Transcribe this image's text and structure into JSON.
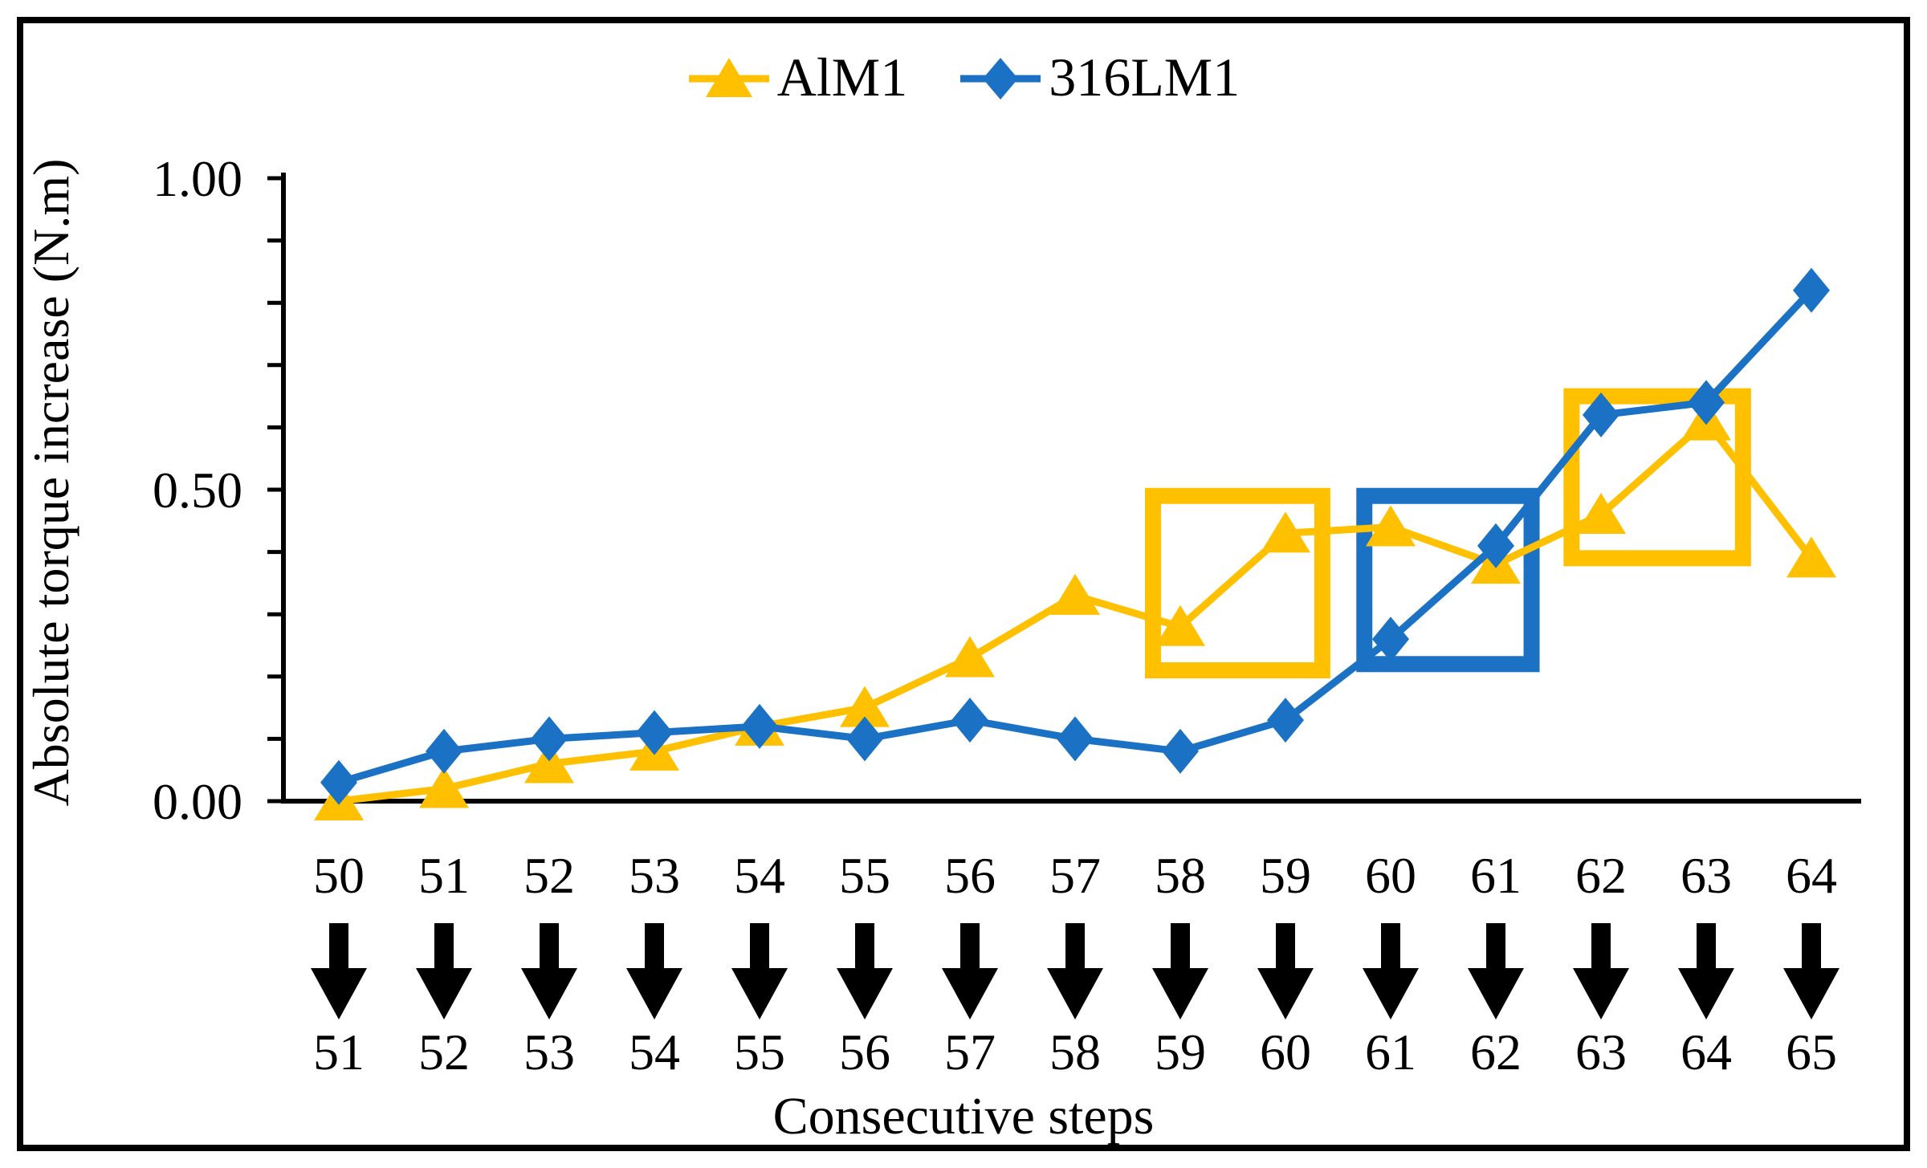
{
  "chart_data": {
    "type": "line",
    "title": "",
    "xlabel": "Consecutive steps",
    "ylabel": "Absolute torque increase (N.m)",
    "ylim": [
      0,
      1
    ],
    "ytick_minor_step": 0.1,
    "yticks_labeled": [
      {
        "value": 0.0,
        "label": "0.00"
      },
      {
        "value": 0.5,
        "label": "0.50"
      },
      {
        "value": 1.0,
        "label": "1.00"
      }
    ],
    "grid": false,
    "legend_position": "top-center",
    "categories": [
      {
        "from": "50",
        "to": "51"
      },
      {
        "from": "51",
        "to": "52"
      },
      {
        "from": "52",
        "to": "53"
      },
      {
        "from": "53",
        "to": "54"
      },
      {
        "from": "54",
        "to": "55"
      },
      {
        "from": "55",
        "to": "56"
      },
      {
        "from": "56",
        "to": "57"
      },
      {
        "from": "57",
        "to": "58"
      },
      {
        "from": "58",
        "to": "59"
      },
      {
        "from": "59",
        "to": "60"
      },
      {
        "from": "60",
        "to": "61"
      },
      {
        "from": "61",
        "to": "62"
      },
      {
        "from": "62",
        "to": "63"
      },
      {
        "from": "63",
        "to": "64"
      },
      {
        "from": "64",
        "to": "65"
      }
    ],
    "series": [
      {
        "name": "AlM1",
        "marker": "triangle",
        "color": "#FFC000",
        "values": [
          0.0,
          0.02,
          0.06,
          0.08,
          0.12,
          0.15,
          0.23,
          0.33,
          0.28,
          0.43,
          0.44,
          0.38,
          0.46,
          0.61,
          0.39
        ]
      },
      {
        "name": "316LM1",
        "marker": "diamond",
        "color": "#1B71C3",
        "values": [
          0.03,
          0.08,
          0.1,
          0.11,
          0.12,
          0.1,
          0.13,
          0.1,
          0.08,
          0.13,
          0.26,
          0.41,
          0.62,
          0.64,
          0.82
        ]
      }
    ],
    "annotations": [
      {
        "type": "rect",
        "color": "#FFC000",
        "x_start": 7.74,
        "x_end": 9.35,
        "v_start": 0.21,
        "v_end": 0.49
      },
      {
        "type": "rect",
        "color": "#1B71C3",
        "x_start": 9.75,
        "x_end": 11.34,
        "v_start": 0.22,
        "v_end": 0.49
      },
      {
        "type": "rect",
        "color": "#FFC000",
        "x_start": 11.72,
        "x_end": 13.35,
        "v_start": 0.39,
        "v_end": 0.65
      }
    ],
    "axis_color": "#000000",
    "x_label_arrow": "down-arrow"
  }
}
